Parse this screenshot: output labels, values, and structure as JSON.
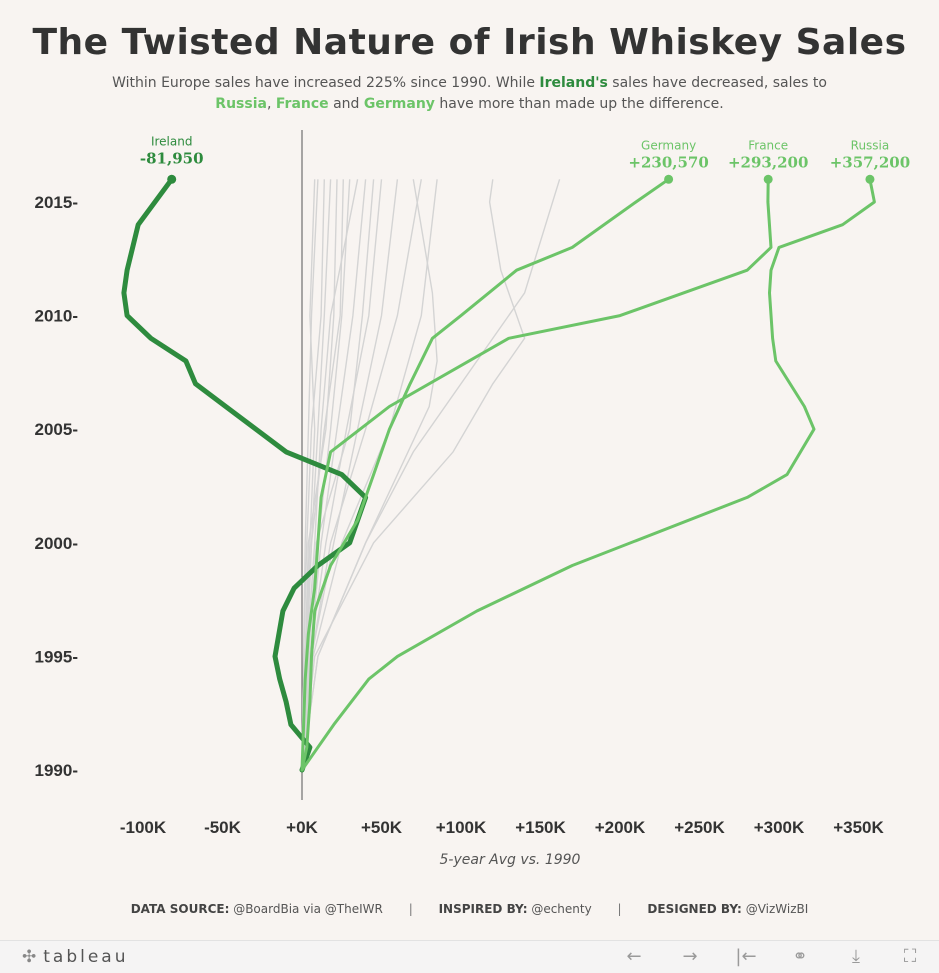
{
  "header": {
    "title": "The Twisted Nature of Irish Whiskey Sales",
    "subtitle": {
      "part1": "Within Europe sales have increased 225% since 1990. While ",
      "ireland": "Ireland's",
      "part2": " sales have decreased, sales to",
      "russia": "Russia",
      "comma": ", ",
      "france": "France",
      "and": " and ",
      "germany": "Germany",
      "part3": " have more than made up the difference."
    }
  },
  "colors": {
    "ireland": "#2e8b3e",
    "highlight": "#6cc468",
    "background_series": "#d4d4d4",
    "zero_line": "#555555",
    "text": "#333333"
  },
  "chart_data": {
    "type": "line",
    "title": "The Twisted Nature of Irish Whiskey Sales",
    "xlabel": "5-year Avg vs. 1990",
    "ylabel": "",
    "xlim": [
      -120000,
      365000
    ],
    "ylim": [
      1989,
      2016.5
    ],
    "x_ticks": [
      -100000,
      -50000,
      0,
      50000,
      100000,
      150000,
      200000,
      250000,
      300000,
      350000
    ],
    "x_tick_labels": [
      "-100K",
      "-50K",
      "+0K",
      "+50K",
      "+100K",
      "+150K",
      "+200K",
      "+250K",
      "+300K",
      "+350K"
    ],
    "y_ticks": [
      1990,
      1995,
      2000,
      2005,
      2010,
      2015
    ],
    "y_tick_labels": [
      "1990-",
      "1995-",
      "2000-",
      "2005-",
      "2010-",
      "2015-"
    ],
    "grid": false,
    "orientation": "value on x-axis, year on y-axis",
    "labeled_series": [
      {
        "name": "Ireland",
        "end_label": "-81,950",
        "color": "#2e8b3e",
        "points": [
          [
            0,
            1990
          ],
          [
            5000,
            1991
          ],
          [
            -7000,
            1992
          ],
          [
            -10000,
            1993
          ],
          [
            -14000,
            1994
          ],
          [
            -17000,
            1995
          ],
          [
            -12000,
            1997
          ],
          [
            -5000,
            1998
          ],
          [
            10000,
            1999
          ],
          [
            30000,
            2000
          ],
          [
            40000,
            2002
          ],
          [
            25000,
            2003
          ],
          [
            -10000,
            2004
          ],
          [
            -48000,
            2006
          ],
          [
            -67000,
            2007
          ],
          [
            -73000,
            2008
          ],
          [
            -95000,
            2009
          ],
          [
            -110000,
            2010
          ],
          [
            -112000,
            2011
          ],
          [
            -110000,
            2012
          ],
          [
            -103000,
            2014
          ],
          [
            -81950,
            2016
          ]
        ]
      },
      {
        "name": "Germany",
        "end_label": "+230,570",
        "color": "#6cc468",
        "points": [
          [
            0,
            1990
          ],
          [
            3000,
            1991
          ],
          [
            5000,
            1993
          ],
          [
            6000,
            1995
          ],
          [
            8000,
            1997
          ],
          [
            18000,
            1999
          ],
          [
            35000,
            2001
          ],
          [
            45000,
            2003
          ],
          [
            55000,
            2005
          ],
          [
            68000,
            2007
          ],
          [
            82000,
            2009
          ],
          [
            100000,
            2010
          ],
          [
            135000,
            2012
          ],
          [
            170000,
            2013
          ],
          [
            210000,
            2015
          ],
          [
            230570,
            2016
          ]
        ]
      },
      {
        "name": "France",
        "end_label": "+293,200",
        "color": "#6cc468",
        "points": [
          [
            0,
            1990
          ],
          [
            1000,
            1992
          ],
          [
            2000,
            1994
          ],
          [
            4000,
            1996
          ],
          [
            8000,
            1998
          ],
          [
            10000,
            2000
          ],
          [
            12000,
            2002
          ],
          [
            18000,
            2004
          ],
          [
            55000,
            2006
          ],
          [
            130000,
            2009
          ],
          [
            200000,
            2010
          ],
          [
            280000,
            2012
          ],
          [
            295000,
            2013
          ],
          [
            293000,
            2015
          ],
          [
            293200,
            2016
          ]
        ]
      },
      {
        "name": "Russia",
        "end_label": "+357,200",
        "color": "#6cc468",
        "points": [
          [
            0,
            1990
          ],
          [
            20000,
            1992
          ],
          [
            42000,
            1994
          ],
          [
            60000,
            1995
          ],
          [
            110000,
            1997
          ],
          [
            170000,
            1999
          ],
          [
            280000,
            2002
          ],
          [
            305000,
            2003
          ],
          [
            322000,
            2005
          ],
          [
            316000,
            2006
          ],
          [
            298000,
            2008
          ],
          [
            296000,
            2009
          ],
          [
            294000,
            2011
          ],
          [
            295000,
            2012
          ],
          [
            300000,
            2013
          ],
          [
            340000,
            2014
          ],
          [
            360000,
            2015
          ],
          [
            357200,
            2016
          ]
        ]
      }
    ],
    "background_series": [
      [
        [
          0,
          1990
        ],
        [
          3000,
          1995
        ],
        [
          6000,
          2000
        ],
        [
          10000,
          2005
        ],
        [
          14000,
          2010
        ],
        [
          18000,
          2016
        ]
      ],
      [
        [
          0,
          1990
        ],
        [
          2000,
          1995
        ],
        [
          5000,
          2000
        ],
        [
          8000,
          2005
        ],
        [
          5000,
          2010
        ],
        [
          8000,
          2016
        ]
      ],
      [
        [
          0,
          1990
        ],
        [
          4000,
          1995
        ],
        [
          10000,
          2000
        ],
        [
          18000,
          2005
        ],
        [
          25000,
          2010
        ],
        [
          30000,
          2016
        ]
      ],
      [
        [
          0,
          1990
        ],
        [
          5000,
          1995
        ],
        [
          12000,
          2000
        ],
        [
          22000,
          2005
        ],
        [
          32000,
          2010
        ],
        [
          40000,
          2016
        ]
      ],
      [
        [
          0,
          1990
        ],
        [
          6000,
          1995
        ],
        [
          20000,
          2000
        ],
        [
          35000,
          2005
        ],
        [
          50000,
          2010
        ],
        [
          60000,
          2016
        ]
      ],
      [
        [
          0,
          1990
        ],
        [
          7000,
          1995
        ],
        [
          25000,
          2000
        ],
        [
          55000,
          2005
        ],
        [
          75000,
          2010
        ],
        [
          85000,
          2016
        ]
      ],
      [
        [
          0,
          1990
        ],
        [
          10000,
          1995
        ],
        [
          40000,
          2000
        ],
        [
          80000,
          2006
        ],
        [
          85000,
          2008
        ],
        [
          82000,
          2011
        ],
        [
          70000,
          2016
        ]
      ],
      [
        [
          0,
          1990
        ],
        [
          8000,
          1995
        ],
        [
          45000,
          2000
        ],
        [
          95000,
          2004
        ],
        [
          120000,
          2007
        ],
        [
          140000,
          2009
        ],
        [
          125000,
          2012
        ],
        [
          118000,
          2015
        ],
        [
          120000,
          2016
        ]
      ],
      [
        [
          0,
          1990
        ],
        [
          10000,
          1995
        ],
        [
          40000,
          2000
        ],
        [
          70000,
          2004
        ],
        [
          110000,
          2008
        ],
        [
          140000,
          2011
        ],
        [
          162000,
          2016
        ]
      ],
      [
        [
          0,
          1990
        ],
        [
          2000,
          1995
        ],
        [
          4000,
          2000
        ],
        [
          15000,
          2005
        ],
        [
          20000,
          2010
        ],
        [
          22000,
          2016
        ]
      ],
      [
        [
          0,
          1990
        ],
        [
          3000,
          1995
        ],
        [
          8000,
          2000
        ],
        [
          12000,
          2005
        ],
        [
          18000,
          2010
        ],
        [
          35000,
          2016
        ]
      ],
      [
        [
          0,
          1990
        ],
        [
          5000,
          1995
        ],
        [
          15000,
          2000
        ],
        [
          28000,
          2005
        ],
        [
          42000,
          2010
        ],
        [
          50000,
          2016
        ]
      ],
      [
        [
          0,
          1990
        ],
        [
          1000,
          1995
        ],
        [
          2000,
          2000
        ],
        [
          4000,
          2005
        ],
        [
          6000,
          2010
        ],
        [
          10000,
          2016
        ]
      ],
      [
        [
          0,
          1990
        ],
        [
          2000,
          1995
        ],
        [
          6000,
          2000
        ],
        [
          14000,
          2005
        ],
        [
          24000,
          2010
        ],
        [
          26000,
          2016
        ]
      ],
      [
        [
          0,
          1990
        ],
        [
          4000,
          1995
        ],
        [
          9000,
          2000
        ],
        [
          30000,
          2005
        ],
        [
          38000,
          2010
        ],
        [
          45000,
          2016
        ]
      ],
      [
        [
          0,
          1990
        ],
        [
          6000,
          1995
        ],
        [
          18000,
          2000
        ],
        [
          40000,
          2005
        ],
        [
          60000,
          2010
        ],
        [
          75000,
          2016
        ]
      ],
      [
        [
          0,
          1990
        ],
        [
          1000,
          1995
        ],
        [
          3000,
          2000
        ],
        [
          6000,
          2005
        ],
        [
          12000,
          2010
        ],
        [
          14000,
          2016
        ]
      ]
    ]
  },
  "footer": {
    "source_label": "DATA SOURCE:",
    "source_value": "@BoardBia via @TheIWR",
    "sep": "|",
    "inspired_label": "INSPIRED BY:",
    "inspired_value": "@echenty",
    "designed_label": "DESIGNED BY:",
    "designed_value": "@VizWizBI"
  },
  "toolbar": {
    "brand": "tableau",
    "back_icon": "←",
    "forward_icon": "→",
    "revert_icon": "|←",
    "share_icon": "⚭",
    "download_icon": "⤓",
    "fullscreen_icon": "⛶"
  }
}
